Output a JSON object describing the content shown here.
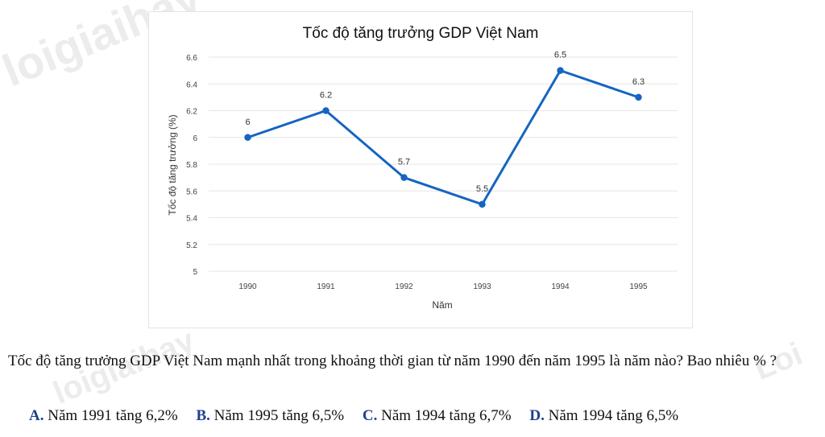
{
  "chart_data": {
    "type": "line",
    "title": "Tốc độ tăng trưởng GDP Việt Nam",
    "xlabel": "Năm",
    "ylabel": "Tốc độ tăng trưởng (%)",
    "categories": [
      "1990",
      "1991",
      "1992",
      "1993",
      "1994",
      "1995"
    ],
    "values": [
      6,
      6.2,
      5.7,
      5.5,
      6.5,
      6.3
    ],
    "data_labels": [
      "6",
      "6.2",
      "5.7",
      "5.5",
      "6.5",
      "6.3"
    ],
    "ylim": [
      5,
      6.6
    ],
    "yticks": [
      "5",
      "5.2",
      "5.4",
      "5.6",
      "5.8",
      "6",
      "6.2",
      "6.4",
      "6.6"
    ],
    "grid": true,
    "line_color": "#1565c0"
  },
  "question": {
    "text": "Tốc độ tăng trưởng GDP Việt Nam mạnh nhất trong khoảng thời gian từ năm 1990 đến năm 1995 là năm nào? Bao nhiêu % ?",
    "options": [
      {
        "letter": "A.",
        "text": "Năm 1991 tăng 6,2%"
      },
      {
        "letter": "B.",
        "text": "Năm 1995 tăng 6,5%"
      },
      {
        "letter": "C.",
        "text": "Năm 1994 tăng 6,7%"
      },
      {
        "letter": "D.",
        "text": "Năm 1994 tăng 6,5%"
      }
    ]
  },
  "watermarks": [
    "loigiaihay",
    "Loi",
    "loigiaihay"
  ]
}
